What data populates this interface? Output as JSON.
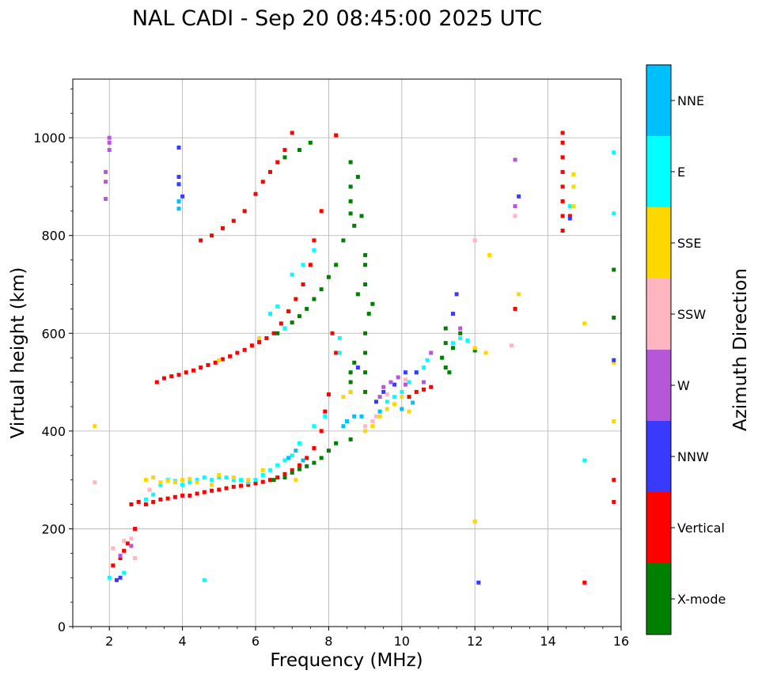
{
  "chart_data": {
    "type": "scatter",
    "title": "NAL CADI - Sep 20 08:45:00 2025 UTC",
    "xlabel": "Frequency (MHz)",
    "ylabel": "Virtual height (km)",
    "xlim": [
      1,
      16
    ],
    "ylim": [
      0,
      1120
    ],
    "xticks": [
      2,
      4,
      6,
      8,
      10,
      12,
      14,
      16
    ],
    "yticks": [
      0,
      200,
      400,
      600,
      800,
      1000
    ],
    "grid": true,
    "colorbar": {
      "title": "Azimuth Direction",
      "categories": [
        {
          "label": "X-mode",
          "color": "#008000"
        },
        {
          "label": "Vertical",
          "color": "#ff0000"
        },
        {
          "label": "NNW",
          "color": "#3a3aff"
        },
        {
          "label": "W",
          "color": "#b557d6"
        },
        {
          "label": "SSW",
          "color": "#ffb6c1"
        },
        {
          "label": "SSE",
          "color": "#ffd700"
        },
        {
          "label": "E",
          "color": "#00ffff"
        },
        {
          "label": "NNE",
          "color": "#00bfff"
        }
      ]
    },
    "series": [
      {
        "name": "Vertical",
        "points": [
          [
            2.1,
            125
          ],
          [
            2.3,
            140
          ],
          [
            2.4,
            155
          ],
          [
            2.5,
            170
          ],
          [
            2.7,
            200
          ],
          [
            2.6,
            250
          ],
          [
            2.8,
            255
          ],
          [
            3.0,
            250
          ],
          [
            3.2,
            255
          ],
          [
            3.4,
            260
          ],
          [
            3.6,
            262
          ],
          [
            3.8,
            265
          ],
          [
            4.0,
            268
          ],
          [
            4.2,
            268
          ],
          [
            4.4,
            272
          ],
          [
            4.6,
            275
          ],
          [
            4.8,
            278
          ],
          [
            5.0,
            280
          ],
          [
            5.2,
            283
          ],
          [
            5.4,
            286
          ],
          [
            5.6,
            288
          ],
          [
            5.8,
            290
          ],
          [
            6.0,
            293
          ],
          [
            6.2,
            296
          ],
          [
            6.4,
            300
          ],
          [
            6.6,
            305
          ],
          [
            6.8,
            312
          ],
          [
            7.0,
            320
          ],
          [
            7.2,
            330
          ],
          [
            7.4,
            345
          ],
          [
            7.6,
            365
          ],
          [
            7.8,
            400
          ],
          [
            7.9,
            440
          ],
          [
            8.0,
            475
          ],
          [
            3.3,
            500
          ],
          [
            3.5,
            508
          ],
          [
            3.7,
            512
          ],
          [
            3.9,
            515
          ],
          [
            4.1,
            520
          ],
          [
            4.3,
            524
          ],
          [
            4.5,
            530
          ],
          [
            4.7,
            535
          ],
          [
            4.9,
            540
          ],
          [
            5.1,
            547
          ],
          [
            5.3,
            553
          ],
          [
            5.5,
            560
          ],
          [
            5.7,
            566
          ],
          [
            5.9,
            575
          ],
          [
            6.1,
            582
          ],
          [
            6.3,
            590
          ],
          [
            6.5,
            600
          ],
          [
            6.7,
            620
          ],
          [
            6.9,
            645
          ],
          [
            7.1,
            670
          ],
          [
            7.3,
            700
          ],
          [
            7.5,
            740
          ],
          [
            7.6,
            790
          ],
          [
            4.5,
            790
          ],
          [
            4.8,
            800
          ],
          [
            5.1,
            815
          ],
          [
            5.4,
            830
          ],
          [
            5.7,
            850
          ],
          [
            6.0,
            885
          ],
          [
            6.2,
            910
          ],
          [
            6.4,
            930
          ],
          [
            6.6,
            950
          ],
          [
            6.8,
            975
          ],
          [
            7.0,
            1010
          ],
          [
            8.1,
            600
          ],
          [
            8.2,
            560
          ],
          [
            10.4,
            480
          ],
          [
            10.6,
            485
          ],
          [
            10.8,
            490
          ],
          [
            10.2,
            470
          ],
          [
            13.1,
            650
          ],
          [
            14.4,
            810
          ],
          [
            14.4,
            840
          ],
          [
            14.4,
            870
          ],
          [
            14.4,
            900
          ],
          [
            14.4,
            930
          ],
          [
            14.4,
            960
          ],
          [
            14.4,
            990
          ],
          [
            14.4,
            1010
          ],
          [
            14.6,
            840
          ],
          [
            15.0,
            90
          ],
          [
            15.8,
            255
          ],
          [
            15.8,
            300
          ],
          [
            7.8,
            850
          ],
          [
            8.2,
            1005
          ]
        ]
      },
      {
        "name": "X-mode",
        "points": [
          [
            6.5,
            300
          ],
          [
            6.8,
            305
          ],
          [
            7.0,
            315
          ],
          [
            7.2,
            322
          ],
          [
            7.4,
            328
          ],
          [
            7.6,
            335
          ],
          [
            7.8,
            345
          ],
          [
            8.0,
            360
          ],
          [
            8.2,
            375
          ],
          [
            8.6,
            383
          ],
          [
            6.6,
            600
          ],
          [
            6.8,
            610
          ],
          [
            7.0,
            622
          ],
          [
            7.2,
            635
          ],
          [
            7.4,
            650
          ],
          [
            7.6,
            670
          ],
          [
            7.8,
            690
          ],
          [
            8.0,
            715
          ],
          [
            8.2,
            740
          ],
          [
            8.4,
            790
          ],
          [
            8.6,
            950
          ],
          [
            8.6,
            900
          ],
          [
            8.6,
            870
          ],
          [
            8.6,
            845
          ],
          [
            8.7,
            820
          ],
          [
            8.8,
            920
          ],
          [
            8.9,
            840
          ],
          [
            9.0,
            760
          ],
          [
            9.0,
            740
          ],
          [
            9.0,
            700
          ],
          [
            8.8,
            680
          ],
          [
            8.6,
            520
          ],
          [
            8.6,
            500
          ],
          [
            8.6,
            480
          ],
          [
            8.7,
            540
          ],
          [
            9.0,
            480
          ],
          [
            9.0,
            520
          ],
          [
            9.0,
            560
          ],
          [
            9.0,
            600
          ],
          [
            9.1,
            640
          ],
          [
            9.2,
            660
          ],
          [
            11.2,
            610
          ],
          [
            11.2,
            580
          ],
          [
            11.4,
            570
          ],
          [
            11.6,
            600
          ],
          [
            11.1,
            550
          ],
          [
            11.3,
            520
          ],
          [
            11.2,
            530
          ],
          [
            12.0,
            565
          ],
          [
            15.8,
            730
          ],
          [
            15.8,
            632
          ],
          [
            7.2,
            975
          ],
          [
            7.5,
            990
          ],
          [
            6.8,
            960
          ]
        ]
      },
      {
        "name": "E",
        "points": [
          [
            2.0,
            100
          ],
          [
            2.4,
            110
          ],
          [
            3.0,
            260
          ],
          [
            3.2,
            270
          ],
          [
            3.4,
            290
          ],
          [
            3.6,
            300
          ],
          [
            3.8,
            298
          ],
          [
            4.0,
            290
          ],
          [
            4.2,
            295
          ],
          [
            4.4,
            300
          ],
          [
            4.6,
            305
          ],
          [
            4.8,
            300
          ],
          [
            5.0,
            305
          ],
          [
            5.2,
            305
          ],
          [
            5.4,
            300
          ],
          [
            5.6,
            300
          ],
          [
            5.8,
            295
          ],
          [
            6.0,
            300
          ],
          [
            6.2,
            310
          ],
          [
            6.4,
            320
          ],
          [
            6.6,
            330
          ],
          [
            6.8,
            340
          ],
          [
            7.0,
            350
          ],
          [
            7.2,
            375
          ],
          [
            7.6,
            410
          ],
          [
            7.9,
            430
          ],
          [
            8.3,
            590
          ],
          [
            8.3,
            560
          ],
          [
            9.6,
            460
          ],
          [
            9.8,
            470
          ],
          [
            10.0,
            480
          ],
          [
            10.2,
            500
          ],
          [
            10.4,
            520
          ],
          [
            10.6,
            530
          ],
          [
            10.7,
            545
          ],
          [
            11.4,
            580
          ],
          [
            11.6,
            590
          ],
          [
            7.0,
            720
          ],
          [
            7.3,
            740
          ],
          [
            7.6,
            770
          ],
          [
            6.4,
            640
          ],
          [
            6.6,
            655
          ],
          [
            6.8,
            610
          ],
          [
            4.6,
            95
          ],
          [
            15.8,
            970
          ],
          [
            15.8,
            845
          ],
          [
            14.6,
            860
          ],
          [
            15.0,
            340
          ],
          [
            12.3,
            560
          ],
          [
            11.8,
            585
          ]
        ]
      },
      {
        "name": "SSE",
        "points": [
          [
            3.0,
            300
          ],
          [
            3.2,
            305
          ],
          [
            3.4,
            295
          ],
          [
            3.6,
            298
          ],
          [
            3.8,
            295
          ],
          [
            4.0,
            300
          ],
          [
            4.2,
            302
          ],
          [
            4.4,
            295
          ],
          [
            4.8,
            290
          ],
          [
            5.0,
            310
          ],
          [
            5.4,
            305
          ],
          [
            5.8,
            300
          ],
          [
            6.2,
            320
          ],
          [
            7.1,
            300
          ],
          [
            9.0,
            400
          ],
          [
            9.2,
            410
          ],
          [
            9.4,
            430
          ],
          [
            9.6,
            445
          ],
          [
            9.8,
            455
          ],
          [
            10.0,
            470
          ],
          [
            10.2,
            440
          ],
          [
            8.4,
            470
          ],
          [
            8.6,
            480
          ],
          [
            12.0,
            570
          ],
          [
            12.3,
            560
          ],
          [
            12.4,
            760
          ],
          [
            13.2,
            680
          ],
          [
            14.7,
            925
          ],
          [
            14.7,
            900
          ],
          [
            14.7,
            860
          ],
          [
            15.0,
            620
          ],
          [
            15.8,
            540
          ],
          [
            15.8,
            420
          ],
          [
            1.6,
            410
          ],
          [
            12.0,
            215
          ],
          [
            6.1,
            590
          ],
          [
            5.0,
            545
          ]
        ]
      },
      {
        "name": "NNW",
        "points": [
          [
            2.2,
            95
          ],
          [
            2.3,
            100
          ],
          [
            3.9,
            980
          ],
          [
            3.9,
            920
          ],
          [
            3.9,
            905
          ],
          [
            4.0,
            880
          ],
          [
            9.3,
            460
          ],
          [
            9.5,
            480
          ],
          [
            9.8,
            495
          ],
          [
            10.1,
            520
          ],
          [
            10.4,
            520
          ],
          [
            11.4,
            640
          ],
          [
            11.5,
            680
          ],
          [
            13.2,
            880
          ],
          [
            14.6,
            835
          ],
          [
            15.8,
            545
          ],
          [
            12.1,
            90
          ],
          [
            8.8,
            530
          ]
        ]
      },
      {
        "name": "W",
        "points": [
          [
            2.0,
            1000
          ],
          [
            2.0,
            990
          ],
          [
            2.0,
            975
          ],
          [
            1.9,
            930
          ],
          [
            1.9,
            910
          ],
          [
            1.9,
            875
          ],
          [
            2.3,
            145
          ],
          [
            2.6,
            165
          ],
          [
            9.5,
            490
          ],
          [
            9.7,
            500
          ],
          [
            9.9,
            510
          ],
          [
            10.1,
            495
          ],
          [
            10.6,
            500
          ],
          [
            10.8,
            560
          ],
          [
            13.1,
            955
          ],
          [
            13.1,
            860
          ],
          [
            11.6,
            610
          ],
          [
            9.4,
            470
          ]
        ]
      },
      {
        "name": "SSW",
        "points": [
          [
            2.1,
            160
          ],
          [
            2.4,
            175
          ],
          [
            2.6,
            180
          ],
          [
            2.7,
            140
          ],
          [
            3.1,
            280
          ],
          [
            9.2,
            420
          ],
          [
            9.3,
            430
          ],
          [
            9.6,
            475
          ],
          [
            10.1,
            505
          ],
          [
            12.0,
            790
          ],
          [
            13.0,
            575
          ],
          [
            13.1,
            840
          ],
          [
            1.6,
            295
          ],
          [
            9.0,
            410
          ]
        ]
      },
      {
        "name": "NNE",
        "points": [
          [
            3.9,
            855
          ],
          [
            3.9,
            870
          ],
          [
            8.4,
            410
          ],
          [
            8.5,
            420
          ],
          [
            8.7,
            430
          ],
          [
            8.9,
            430
          ],
          [
            9.4,
            440
          ],
          [
            10.0,
            445
          ],
          [
            10.3,
            458
          ],
          [
            7.3,
            340
          ],
          [
            7.1,
            360
          ],
          [
            6.9,
            345
          ]
        ]
      }
    ]
  }
}
